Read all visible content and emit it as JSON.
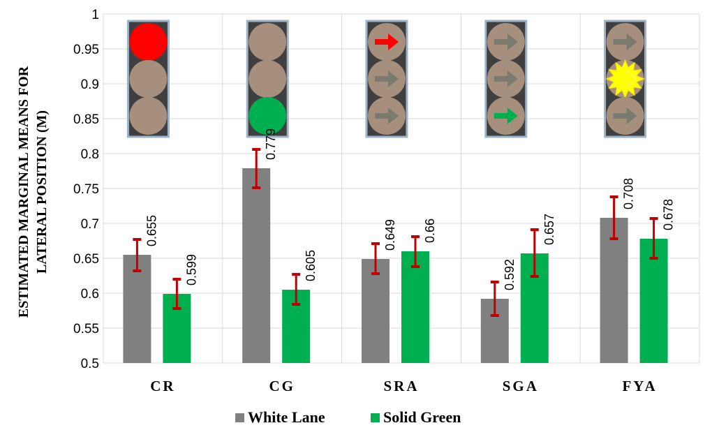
{
  "chart_data": {
    "type": "bar",
    "title": "",
    "ylabel_lines": [
      "ESTIMATED MARGINAL MEANS FOR",
      "LATERAL POSITION (M)"
    ],
    "xlabel": "",
    "ylim": [
      0.5,
      1
    ],
    "yticks": [
      "0.5",
      "0.55",
      "0.6",
      "0.65",
      "0.7",
      "0.75",
      "0.8",
      "0.85",
      "0.9",
      "0.95",
      "1"
    ],
    "grid": true,
    "legend_position": "bottom",
    "categories": [
      "CR",
      "CG",
      "SRA",
      "SGA",
      "FYA"
    ],
    "series": [
      {
        "name": "White Lane",
        "color": "#808080",
        "values": [
          0.655,
          0.779,
          0.649,
          0.592,
          0.708
        ],
        "labels": [
          "0.655",
          "0.779",
          "0.649",
          "0.592",
          "0.708"
        ],
        "error_low": [
          0.632,
          0.751,
          0.628,
          0.568,
          0.678
        ],
        "error_high": [
          0.677,
          0.806,
          0.671,
          0.616,
          0.738
        ]
      },
      {
        "name": "Solid Green",
        "color": "#00b050",
        "values": [
          0.599,
          0.605,
          0.66,
          0.657,
          0.678
        ],
        "labels": [
          "0.599",
          "0.605",
          "0.66",
          "0.657",
          "0.678"
        ],
        "error_low": [
          0.578,
          0.584,
          0.638,
          0.624,
          0.65
        ],
        "error_high": [
          0.62,
          0.627,
          0.681,
          0.691,
          0.707
        ]
      }
    ],
    "error_bar_color": "#c00000",
    "signal_icons": [
      {
        "category": "CR",
        "lamps": [
          "red-circle",
          "off-circle",
          "off-circle"
        ]
      },
      {
        "category": "CG",
        "lamps": [
          "off-circle",
          "off-circle",
          "green-circle"
        ]
      },
      {
        "category": "SRA",
        "lamps": [
          "red-arrow",
          "off-arrow",
          "off-arrow"
        ]
      },
      {
        "category": "SGA",
        "lamps": [
          "off-arrow",
          "off-arrow",
          "green-arrow"
        ]
      },
      {
        "category": "FYA",
        "lamps": [
          "off-arrow",
          "flashing-yellow-arrow",
          "off-arrow"
        ]
      }
    ]
  }
}
